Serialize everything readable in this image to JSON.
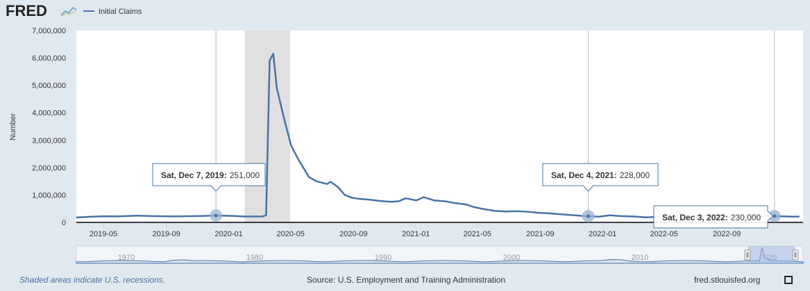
{
  "header": {
    "logo": "FRED",
    "logo_icon": "line-chart-icon",
    "legend_label": "Initial Claims"
  },
  "colors": {
    "series": "#4572a7",
    "recession": "#e0e0e0",
    "background": "#e1e9f0",
    "plot": "#ffffff",
    "navigator_mask": "#b8c8e8"
  },
  "chart_data": {
    "type": "line",
    "ylabel": "Number",
    "ylim": [
      0,
      7000000
    ],
    "yticks": [
      {
        "value": 0,
        "label": "0"
      },
      {
        "value": 1000000,
        "label": "1,000,000"
      },
      {
        "value": 2000000,
        "label": "2,000,000"
      },
      {
        "value": 3000000,
        "label": "3,000,000"
      },
      {
        "value": 4000000,
        "label": "4,000,000"
      },
      {
        "value": 5000000,
        "label": "5,000,000"
      },
      {
        "value": 6000000,
        "label": "6,000,000"
      },
      {
        "value": 7000000,
        "label": "7,000,000"
      }
    ],
    "xlim": [
      "2019-03-09",
      "2023-01-28"
    ],
    "xticks": [
      {
        "date": "2019-05-01",
        "label": "2019-05"
      },
      {
        "date": "2019-09-01",
        "label": "2019-09"
      },
      {
        "date": "2020-01-01",
        "label": "2020-01"
      },
      {
        "date": "2020-05-01",
        "label": "2020-05"
      },
      {
        "date": "2020-09-01",
        "label": "2020-09"
      },
      {
        "date": "2021-01-01",
        "label": "2021-01"
      },
      {
        "date": "2021-05-01",
        "label": "2021-05"
      },
      {
        "date": "2021-09-01",
        "label": "2021-09"
      },
      {
        "date": "2022-01-01",
        "label": "2022-01"
      },
      {
        "date": "2022-05-01",
        "label": "2022-05"
      },
      {
        "date": "2022-09-01",
        "label": "2022-09"
      }
    ],
    "recession": {
      "start": "2020-02-01",
      "end": "2020-04-30"
    },
    "series": [
      {
        "name": "Initial Claims",
        "points": [
          [
            "2019-03-09",
            180000
          ],
          [
            "2019-04-06",
            210000
          ],
          [
            "2019-05-04",
            225000
          ],
          [
            "2019-06-01",
            220000
          ],
          [
            "2019-07-06",
            245000
          ],
          [
            "2019-08-03",
            230000
          ],
          [
            "2019-09-07",
            220000
          ],
          [
            "2019-10-05",
            225000
          ],
          [
            "2019-11-02",
            230000
          ],
          [
            "2019-12-07",
            251000
          ],
          [
            "2020-01-04",
            240000
          ],
          [
            "2020-02-01",
            215000
          ],
          [
            "2020-03-07",
            217000
          ],
          [
            "2020-03-14",
            260000
          ],
          [
            "2020-03-21",
            5900000
          ],
          [
            "2020-03-28",
            6150000
          ],
          [
            "2020-04-04",
            4900000
          ],
          [
            "2020-04-18",
            3800000
          ],
          [
            "2020-05-02",
            2800000
          ],
          [
            "2020-05-16",
            2300000
          ],
          [
            "2020-06-06",
            1650000
          ],
          [
            "2020-06-20",
            1500000
          ],
          [
            "2020-07-11",
            1400000
          ],
          [
            "2020-07-18",
            1480000
          ],
          [
            "2020-08-01",
            1300000
          ],
          [
            "2020-08-15",
            1000000
          ],
          [
            "2020-08-29",
            900000
          ],
          [
            "2020-09-12",
            860000
          ],
          [
            "2020-10-03",
            830000
          ],
          [
            "2020-10-24",
            780000
          ],
          [
            "2020-11-14",
            750000
          ],
          [
            "2020-11-28",
            770000
          ],
          [
            "2020-12-12",
            880000
          ],
          [
            "2021-01-02",
            800000
          ],
          [
            "2021-01-16",
            920000
          ],
          [
            "2021-02-06",
            800000
          ],
          [
            "2021-02-27",
            770000
          ],
          [
            "2021-03-20",
            700000
          ],
          [
            "2021-04-10",
            650000
          ],
          [
            "2021-04-24",
            560000
          ],
          [
            "2021-05-15",
            480000
          ],
          [
            "2021-06-05",
            420000
          ],
          [
            "2021-06-26",
            400000
          ],
          [
            "2021-07-17",
            410000
          ],
          [
            "2021-08-07",
            390000
          ],
          [
            "2021-08-28",
            350000
          ],
          [
            "2021-09-18",
            330000
          ],
          [
            "2021-10-09",
            300000
          ],
          [
            "2021-10-30",
            270000
          ],
          [
            "2021-11-20",
            240000
          ],
          [
            "2021-12-04",
            228000
          ],
          [
            "2021-12-25",
            210000
          ],
          [
            "2022-01-15",
            260000
          ],
          [
            "2022-02-05",
            230000
          ],
          [
            "2022-03-05",
            215000
          ],
          [
            "2022-03-26",
            185000
          ],
          [
            "2022-04-16",
            200000
          ],
          [
            "2022-05-14",
            210000
          ],
          [
            "2022-06-04",
            220000
          ],
          [
            "2022-07-02",
            235000
          ],
          [
            "2022-07-23",
            250000
          ],
          [
            "2022-08-13",
            245000
          ],
          [
            "2022-09-03",
            220000
          ],
          [
            "2022-09-24",
            205000
          ],
          [
            "2022-10-15",
            220000
          ],
          [
            "2022-11-05",
            222000
          ],
          [
            "2022-12-03",
            230000
          ],
          [
            "2023-01-07",
            210000
          ],
          [
            "2023-01-21",
            215000
          ]
        ]
      }
    ],
    "annotations": [
      {
        "date": "2019-12-07",
        "value": 251000,
        "date_label": "Sat, Dec 7, 2019:",
        "value_label": "251,000"
      },
      {
        "date": "2021-12-04",
        "value": 228000,
        "date_label": "Sat, Dec 4, 2021:",
        "value_label": "228,000"
      },
      {
        "date": "2022-12-03",
        "value": 230000,
        "date_label": "Sat, Dec 3, 2022:",
        "value_label": "230,000"
      }
    ],
    "navigator": {
      "labels": [
        "1970",
        "1980",
        "1990",
        "2000",
        "2010",
        "2020"
      ]
    }
  },
  "footer": {
    "note": "Shaded areas indicate U.S. recessions.",
    "source": "Source: U.S. Employment and Training Administration",
    "site": "fred.stlouisfed.org",
    "fullscreen_icon": "fullscreen-icon"
  }
}
